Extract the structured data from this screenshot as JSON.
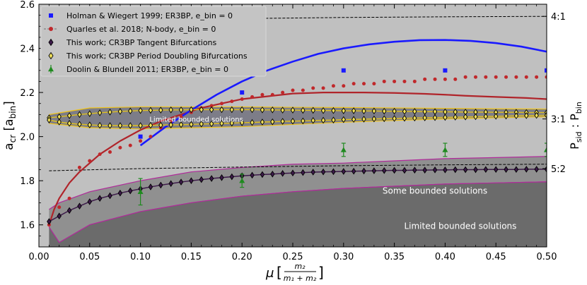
{
  "chart_data": {
    "type": "scatter",
    "xlabel": "μ",
    "xlabel_frac_num": "m₂",
    "xlabel_frac_den": "m₁ + m₂",
    "ylabel": "a_cr [a_bin]",
    "ylabel_right": "P_sid : P_bin",
    "xlim": [
      0.0,
      0.5
    ],
    "ylim": [
      1.5,
      2.6
    ],
    "x_ticks": [
      "0.00",
      "0.05",
      "0.10",
      "0.15",
      "0.20",
      "0.25",
      "0.30",
      "0.35",
      "0.40",
      "0.45",
      "0.50"
    ],
    "y_ticks": [
      "1.6",
      "1.8",
      "2.0",
      "2.2",
      "2.4",
      "2.6"
    ],
    "right_ticks": [
      {
        "label": "4:1",
        "y": 2.545
      },
      {
        "label": "3:1",
        "y": 2.08
      },
      {
        "label": "5:2",
        "y": 1.855
      }
    ],
    "resonance_lines": [
      {
        "name": "4:1",
        "x": [
          0.01,
          0.1,
          0.2,
          0.3,
          0.4,
          0.5
        ],
        "y": [
          2.525,
          2.53,
          2.535,
          2.54,
          2.543,
          2.545
        ]
      },
      {
        "name": "5:2",
        "x": [
          0.01,
          0.1,
          0.2,
          0.3,
          0.4,
          0.5
        ],
        "y": [
          1.845,
          1.855,
          1.862,
          1.868,
          1.872,
          1.875
        ]
      }
    ],
    "region_labels": [
      {
        "text": "Limited bounded solutions",
        "x": 0.155,
        "y": 2.08
      },
      {
        "text": "Some bounded solutions",
        "x": 0.39,
        "y": 1.755
      },
      {
        "text": "Limited bounded solutions",
        "x": 0.415,
        "y": 1.595
      }
    ],
    "legend": [
      {
        "label": "Holman & Wiegert 1999; ER3BP, e_bin = 0",
        "marker": "square",
        "color": "#1a1aff"
      },
      {
        "label": "Quarles et al. 2018; N-body, e_bin = 0",
        "marker": "circle",
        "color": "#c0282b"
      },
      {
        "label": "This work; CR3BP Tangent Bifurcations",
        "marker": "diamond",
        "color": "#3d1a4a"
      },
      {
        "label": "This work; CR3BP Period Doubling Bifurcations",
        "marker": "diamond",
        "color": "#f0e05a"
      },
      {
        "label": "Doolin & Blundell 2011; ER3BP, e_bin = 0",
        "marker": "triangle",
        "color": "#1f8a1f"
      }
    ],
    "series": [
      {
        "name": "Holman & Wiegert 1999",
        "kind": "points",
        "x": [
          0.1,
          0.2,
          0.3,
          0.4,
          0.5
        ],
        "y": [
          2.0,
          2.2,
          2.3,
          2.3,
          2.3
        ]
      },
      {
        "name": "Holman & Wiegert 1999 fit",
        "kind": "line",
        "color": "#1a1aff",
        "x": [
          0.1,
          0.125,
          0.15,
          0.175,
          0.2,
          0.225,
          0.25,
          0.275,
          0.3,
          0.325,
          0.35,
          0.375,
          0.4,
          0.425,
          0.45,
          0.475,
          0.5
        ],
        "y": [
          1.96,
          2.045,
          2.12,
          2.19,
          2.25,
          2.3,
          2.34,
          2.375,
          2.4,
          2.418,
          2.43,
          2.437,
          2.438,
          2.434,
          2.424,
          2.408,
          2.385
        ]
      },
      {
        "name": "Quarles et al. 2018",
        "kind": "points",
        "x": [
          0.01,
          0.02,
          0.03,
          0.04,
          0.05,
          0.06,
          0.07,
          0.08,
          0.09,
          0.1,
          0.11,
          0.12,
          0.13,
          0.14,
          0.15,
          0.16,
          0.17,
          0.18,
          0.19,
          0.2,
          0.21,
          0.22,
          0.23,
          0.24,
          0.25,
          0.26,
          0.27,
          0.28,
          0.29,
          0.3,
          0.31,
          0.32,
          0.33,
          0.34,
          0.35,
          0.36,
          0.37,
          0.38,
          0.39,
          0.4,
          0.41,
          0.42,
          0.43,
          0.44,
          0.45,
          0.46,
          0.47,
          0.48,
          0.49,
          0.5
        ],
        "y": [
          1.6,
          1.68,
          1.72,
          1.86,
          1.89,
          1.92,
          1.93,
          1.95,
          1.96,
          1.98,
          2.0,
          2.04,
          2.07,
          2.09,
          2.11,
          2.13,
          2.14,
          2.15,
          2.16,
          2.17,
          2.18,
          2.19,
          2.19,
          2.2,
          2.21,
          2.21,
          2.22,
          2.22,
          2.23,
          2.23,
          2.24,
          2.24,
          2.24,
          2.25,
          2.25,
          2.25,
          2.25,
          2.26,
          2.26,
          2.26,
          2.26,
          2.27,
          2.27,
          2.27,
          2.27,
          2.27,
          2.27,
          2.27,
          2.27,
          2.27
        ]
      },
      {
        "name": "Quarles et al. 2018 fit",
        "kind": "line",
        "color": "#b0242a",
        "x": [
          0.01,
          0.015,
          0.02,
          0.03,
          0.04,
          0.05,
          0.06,
          0.07,
          0.08,
          0.1,
          0.12,
          0.14,
          0.16,
          0.18,
          0.2,
          0.22,
          0.25,
          0.28,
          0.3,
          0.32,
          0.35,
          0.38,
          0.4,
          0.42,
          0.45,
          0.48,
          0.5
        ],
        "y": [
          1.6,
          1.67,
          1.72,
          1.79,
          1.84,
          1.88,
          1.92,
          1.95,
          1.98,
          2.03,
          2.07,
          2.1,
          2.13,
          2.15,
          2.17,
          2.18,
          2.195,
          2.2,
          2.2,
          2.2,
          2.198,
          2.194,
          2.19,
          2.185,
          2.18,
          2.175,
          2.17
        ]
      },
      {
        "name": "This work; CR3BP Tangent Bifurcations",
        "kind": "points_line",
        "x": [
          0.01,
          0.02,
          0.03,
          0.04,
          0.05,
          0.06,
          0.07,
          0.08,
          0.09,
          0.1,
          0.11,
          0.12,
          0.13,
          0.14,
          0.15,
          0.16,
          0.17,
          0.18,
          0.19,
          0.2,
          0.21,
          0.22,
          0.23,
          0.24,
          0.25,
          0.26,
          0.27,
          0.28,
          0.29,
          0.3,
          0.31,
          0.32,
          0.33,
          0.34,
          0.35,
          0.36,
          0.37,
          0.38,
          0.39,
          0.4,
          0.41,
          0.42,
          0.43,
          0.44,
          0.45,
          0.46,
          0.47,
          0.48,
          0.49,
          0.5
        ],
        "y": [
          1.615,
          1.64,
          1.665,
          1.685,
          1.705,
          1.72,
          1.732,
          1.744,
          1.754,
          1.763,
          1.772,
          1.78,
          1.787,
          1.794,
          1.8,
          1.805,
          1.81,
          1.814,
          1.818,
          1.822,
          1.825,
          1.828,
          1.83,
          1.833,
          1.835,
          1.837,
          1.839,
          1.84,
          1.841,
          1.842,
          1.843,
          1.844,
          1.845,
          1.846,
          1.847,
          1.847,
          1.848,
          1.848,
          1.849,
          1.849,
          1.85,
          1.85,
          1.85,
          1.851,
          1.851,
          1.851,
          1.851,
          1.852,
          1.852,
          1.852
        ]
      },
      {
        "name": "This work; CR3BP Period Doubling Bifurcations (upper)",
        "kind": "points_line",
        "x": [
          0.01,
          0.02,
          0.03,
          0.04,
          0.05,
          0.06,
          0.07,
          0.08,
          0.09,
          0.1,
          0.11,
          0.12,
          0.13,
          0.14,
          0.15,
          0.16,
          0.17,
          0.18,
          0.19,
          0.2,
          0.21,
          0.22,
          0.23,
          0.24,
          0.25,
          0.26,
          0.27,
          0.28,
          0.29,
          0.3,
          0.31,
          0.32,
          0.33,
          0.34,
          0.35,
          0.36,
          0.37,
          0.38,
          0.39,
          0.4,
          0.41,
          0.42,
          0.43,
          0.44,
          0.45,
          0.46,
          0.47,
          0.48,
          0.49,
          0.5
        ],
        "y": [
          2.085,
          2.09,
          2.095,
          2.1,
          2.104,
          2.108,
          2.111,
          2.114,
          2.116,
          2.118,
          2.119,
          2.12,
          2.121,
          2.121,
          2.122,
          2.122,
          2.122,
          2.122,
          2.122,
          2.122,
          2.122,
          2.121,
          2.121,
          2.12,
          2.12,
          2.119,
          2.119,
          2.118,
          2.118,
          2.117,
          2.117,
          2.116,
          2.116,
          2.115,
          2.115,
          2.114,
          2.114,
          2.113,
          2.113,
          2.112,
          2.112,
          2.111,
          2.111,
          2.111,
          2.11,
          2.11,
          2.11,
          2.109,
          2.109,
          2.109
        ]
      },
      {
        "name": "This work; CR3BP Period Doubling Bifurcations (lower)",
        "kind": "points_line",
        "x": [
          0.01,
          0.02,
          0.03,
          0.04,
          0.05,
          0.06,
          0.07,
          0.08,
          0.09,
          0.1,
          0.11,
          0.12,
          0.13,
          0.14,
          0.15,
          0.16,
          0.17,
          0.18,
          0.19,
          0.2,
          0.21,
          0.22,
          0.23,
          0.24,
          0.25,
          0.26,
          0.27,
          0.28,
          0.29,
          0.3,
          0.31,
          0.32,
          0.33,
          0.34,
          0.35,
          0.36,
          0.37,
          0.38,
          0.39,
          0.4,
          0.41,
          0.42,
          0.43,
          0.44,
          0.45,
          0.46,
          0.47,
          0.48,
          0.49,
          0.5
        ],
        "y": [
          2.075,
          2.066,
          2.06,
          2.056,
          2.053,
          2.051,
          2.05,
          2.05,
          2.05,
          2.05,
          2.051,
          2.052,
          2.053,
          2.054,
          2.055,
          2.057,
          2.058,
          2.06,
          2.061,
          2.063,
          2.064,
          2.066,
          2.067,
          2.069,
          2.07,
          2.071,
          2.073,
          2.074,
          2.075,
          2.077,
          2.078,
          2.079,
          2.08,
          2.081,
          2.082,
          2.083,
          2.084,
          2.085,
          2.086,
          2.087,
          2.088,
          2.089,
          2.09,
          2.091,
          2.092,
          2.093,
          2.094,
          2.095,
          2.096,
          2.097
        ]
      },
      {
        "name": "Doolin & Blundell 2011",
        "kind": "errorbar",
        "x": [
          0.1,
          0.2,
          0.3,
          0.4,
          0.5
        ],
        "y": [
          1.75,
          1.8,
          1.94,
          1.94,
          1.94
        ],
        "err": [
          0.06,
          0.03,
          0.03,
          0.03,
          0.03
        ]
      }
    ],
    "bands": [
      {
        "name": "Limited bounded solutions (upper band)",
        "color": "#7d7d88",
        "edge": "#f0c419",
        "x": [
          0.01,
          0.05,
          0.1,
          0.15,
          0.2,
          0.25,
          0.3,
          0.35,
          0.4,
          0.45,
          0.5
        ],
        "upper": [
          2.1,
          2.13,
          2.135,
          2.135,
          2.135,
          2.133,
          2.132,
          2.13,
          2.128,
          2.126,
          2.125
        ],
        "lower": [
          2.06,
          2.04,
          2.035,
          2.04,
          2.045,
          2.055,
          2.065,
          2.073,
          2.08,
          2.085,
          2.09
        ]
      },
      {
        "name": "Some bounded solutions",
        "color": "#909090",
        "edge": "#b02a9a",
        "x": [
          0.01,
          0.02,
          0.05,
          0.1,
          0.15,
          0.2,
          0.25,
          0.3,
          0.35,
          0.4,
          0.45,
          0.5
        ],
        "upper": [
          1.67,
          1.7,
          1.75,
          1.8,
          1.84,
          1.86,
          1.875,
          1.88,
          1.89,
          1.9,
          1.905,
          1.91
        ],
        "lower": [
          1.59,
          1.52,
          1.6,
          1.66,
          1.7,
          1.73,
          1.75,
          1.765,
          1.775,
          1.785,
          1.79,
          1.795
        ]
      },
      {
        "name": "Limited bounded solutions",
        "color": "#6b6b6b",
        "edge": "#b02a9a",
        "x": [
          0.01,
          0.02,
          0.05,
          0.1,
          0.15,
          0.2,
          0.25,
          0.3,
          0.35,
          0.4,
          0.45,
          0.5
        ],
        "upper": [
          1.59,
          1.52,
          1.6,
          1.66,
          1.7,
          1.73,
          1.75,
          1.765,
          1.775,
          1.785,
          1.79,
          1.795
        ],
        "lower": [
          1.5,
          1.5,
          1.5,
          1.5,
          1.5,
          1.5,
          1.5,
          1.5,
          1.5,
          1.5,
          1.5,
          1.5
        ]
      }
    ]
  }
}
